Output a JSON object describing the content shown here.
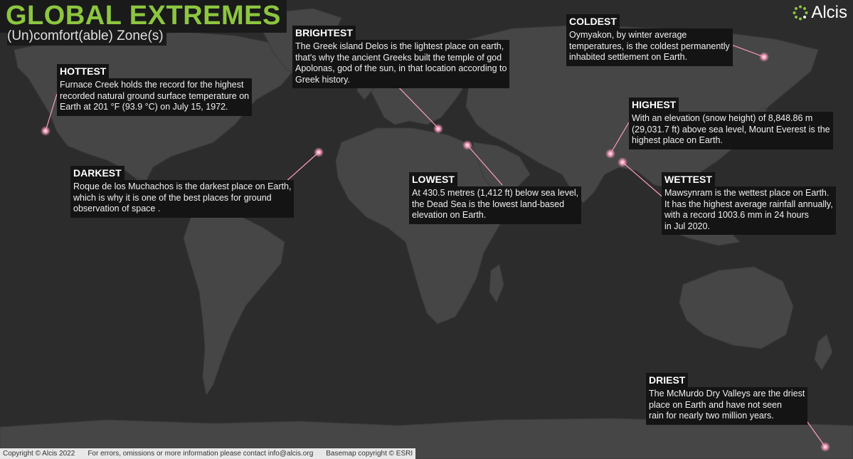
{
  "title": "GLOBAL EXTREMES",
  "subtitle": "(Un)comfort(able) Zone(s)",
  "logo_text": "Alcis",
  "colors": {
    "ocean": "#2c2c2c",
    "land": "#464646",
    "accent": "#8cc63f",
    "marker": "#ff8fb0"
  },
  "callouts": [
    {
      "key": "hottest",
      "label": "HOTTEST",
      "text": "Furnace Creek holds the record for the highest\nrecorded natural ground  surface temperature on\nEarth at 201 °F (93.9 °C) on July 15, 1972."
    },
    {
      "key": "brightest",
      "label": "BRIGHTEST",
      "text": "The Greek island Delos is the lightest place on earth,\nthat's why the ancient Greeks built the temple of god\nApolonas, god of the sun, in that location according to\nGreek history."
    },
    {
      "key": "coldest",
      "label": "COLDEST",
      "text": "Oymyakon, by winter average\ntemperatures, is the coldest permanently\ninhabited settlement on Earth."
    },
    {
      "key": "highest",
      "label": "HIGHEST",
      "text": "With an elevation (snow height) of 8,848.86 m\n(29,031.7 ft) above sea level, Mount Everest is the\nhighest place on Earth."
    },
    {
      "key": "darkest",
      "label": "DARKEST",
      "text": "Roque de los Muchachos is the darkest place on Earth,\nwhich is why it is one of the best places for ground\nobservation of space ."
    },
    {
      "key": "lowest",
      "label": "LOWEST",
      "text": "At 430.5 metres (1,412 ft)  below sea level,\nthe Dead Sea is the lowest land-based\nelevation on Earth."
    },
    {
      "key": "wettest",
      "label": "WETTEST",
      "text": "Mawsynram is the wettest place on Earth.\nIt has the highest average rainfall annually,\nwith a record 1003.6 mm in 24 hours\nin Jul 2020."
    },
    {
      "key": "driest",
      "label": "DRIEST",
      "text": "The McMurdo Dry Valleys are the driest\nplace on Earth and have not seen\nrain for nearly two million years."
    }
  ],
  "footer": {
    "copyright": "Copyright © Alcis 2022",
    "contact": "For errors, omissions or more information please contact info@alcis.org",
    "basemap": "Basemap copyright © ESRI"
  }
}
